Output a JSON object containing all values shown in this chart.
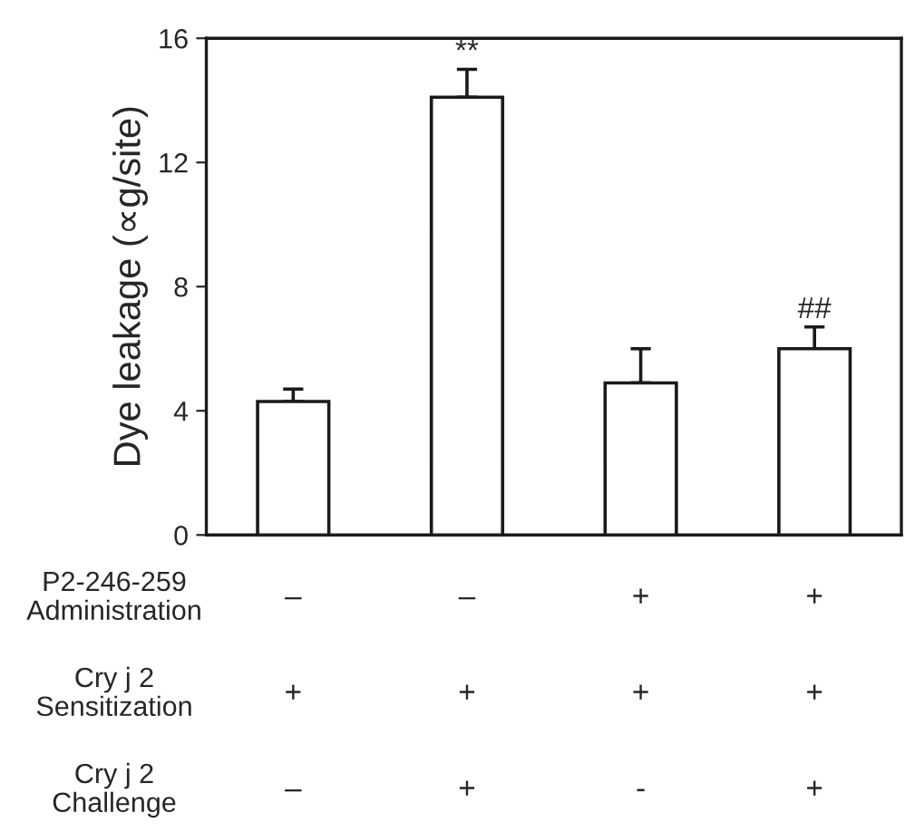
{
  "chart_data": {
    "type": "bar",
    "ylabel": "Dye leakage (∝g/site)",
    "categories": [
      null,
      null,
      null,
      null
    ],
    "values": [
      4.3,
      14.1,
      4.9,
      6.0
    ],
    "errors": [
      [
        4.3,
        4.7
      ],
      [
        14.1,
        15.0
      ],
      [
        4.9,
        6.0
      ],
      [
        6.0,
        6.7
      ]
    ],
    "color": "#ffffff",
    "ylim": [
      0,
      16
    ],
    "yticks": [
      0,
      4,
      8,
      12,
      16
    ],
    "grid": false,
    "legend": false,
    "annotations": [
      {
        "text": "**",
        "y": 15.0
      },
      {
        "text": "##",
        "y": 6.7
      },
      "P2-246-259\nAdministration",
      "–",
      "–",
      "+",
      "+",
      "Cry j 2\nSensitization",
      "+",
      "+",
      "+",
      "+",
      "Cry j 2\nChallenge",
      "–",
      "+",
      "-",
      "+"
    ]
  }
}
